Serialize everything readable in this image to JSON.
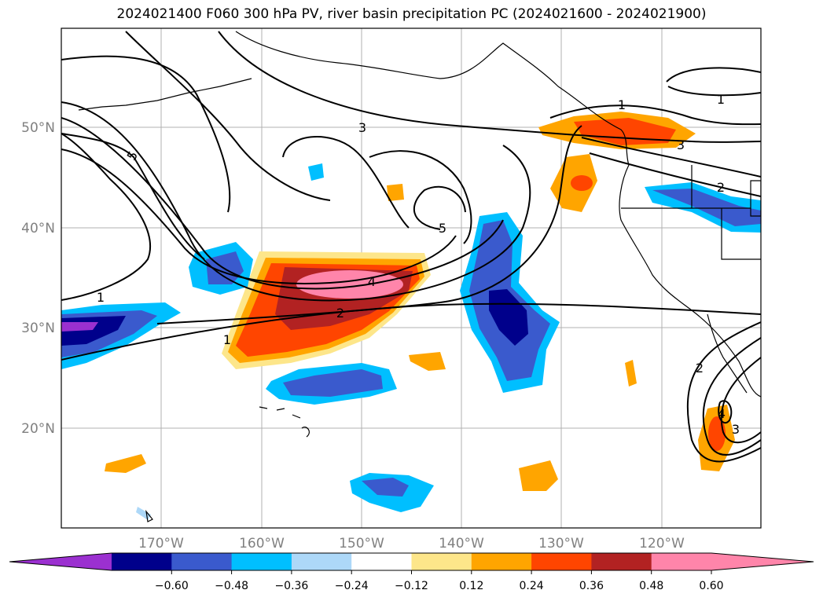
{
  "title": "2024021400 F060 300 hPa PV, river basin precipitation PC (2024021600 - 2024021900)",
  "map": {
    "lat_labels": [
      "50°N",
      "40°N",
      "30°N",
      "20°N"
    ],
    "lon_labels": [
      "170°W",
      "160°W",
      "150°W",
      "140°W",
      "130°W",
      "120°W"
    ],
    "contour_labels": [
      "1",
      "1",
      "1",
      "1",
      "2",
      "2",
      "2",
      "3",
      "3",
      "3",
      "4",
      "4",
      "5",
      "5"
    ]
  },
  "colorbar": {
    "colors": [
      "#9b30d0",
      "#00008b",
      "#3a5acd",
      "#00bfff",
      "#add8f8",
      "#ffffff",
      "#fde68a",
      "#ffa500",
      "#ff4500",
      "#b22222",
      "#ff85aa",
      "#ff85aa"
    ],
    "tick_labels": [
      "−0.60",
      "−0.48",
      "−0.36",
      "−0.24",
      "−0.12",
      "0.12",
      "0.24",
      "0.36",
      "0.48",
      "0.60"
    ]
  }
}
